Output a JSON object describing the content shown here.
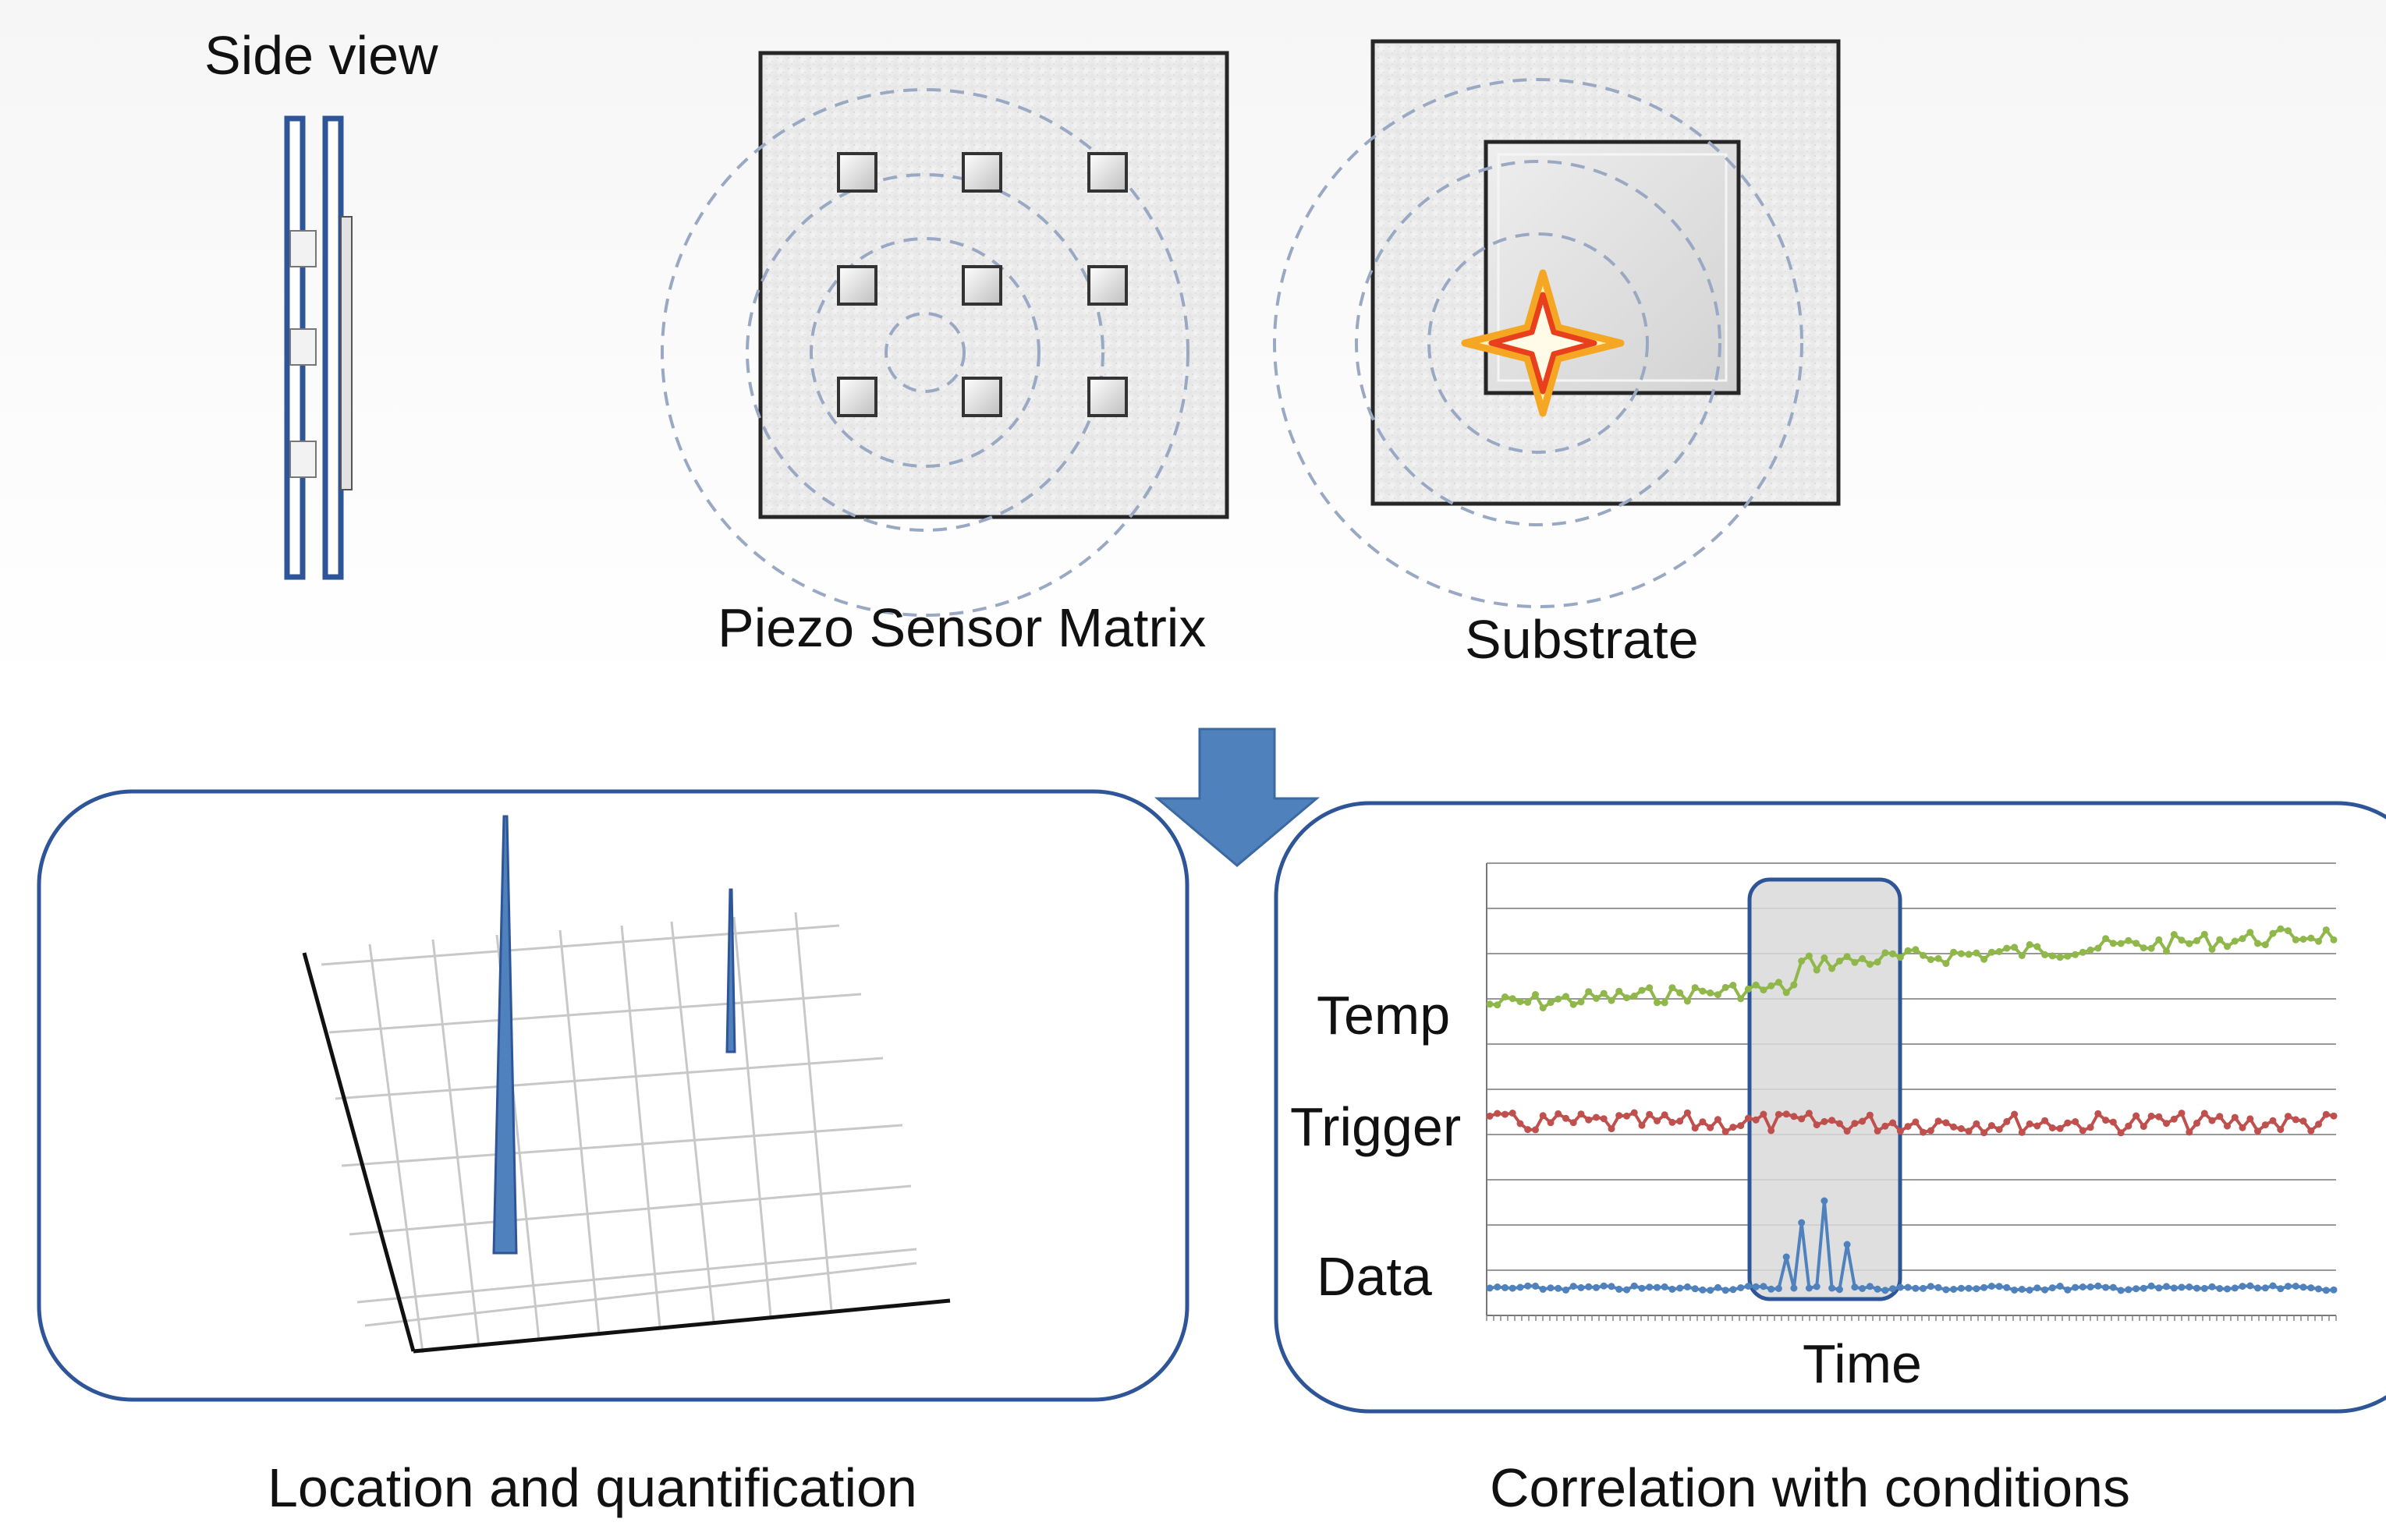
{
  "labels": {
    "side_view": "Side view",
    "sensor_matrix": "Piezo Sensor Matrix",
    "substrate": "Substrate",
    "location": "Location and quantification",
    "correlation": "Correlation with conditions"
  },
  "chart_data": {
    "type": "line",
    "xlabel": "Time",
    "ylabel": "",
    "grid": true,
    "series": [
      {
        "name": "Temp",
        "color": "#8fb74a"
      },
      {
        "name": "Trigger",
        "color": "#c0504d"
      },
      {
        "name": "Data",
        "color": "#4f81bd"
      }
    ],
    "highlight_window": "event"
  },
  "colors": {
    "accent": "#4f81bd",
    "outline": "#2e5597",
    "temp": "#8fb74a",
    "trigger": "#c0504d",
    "data": "#4f81bd",
    "star_outer": "#f5a623",
    "star_inner": "#e8401c"
  },
  "icons": {
    "arrow": "down-arrow-icon",
    "impact": "impact-star-icon"
  }
}
